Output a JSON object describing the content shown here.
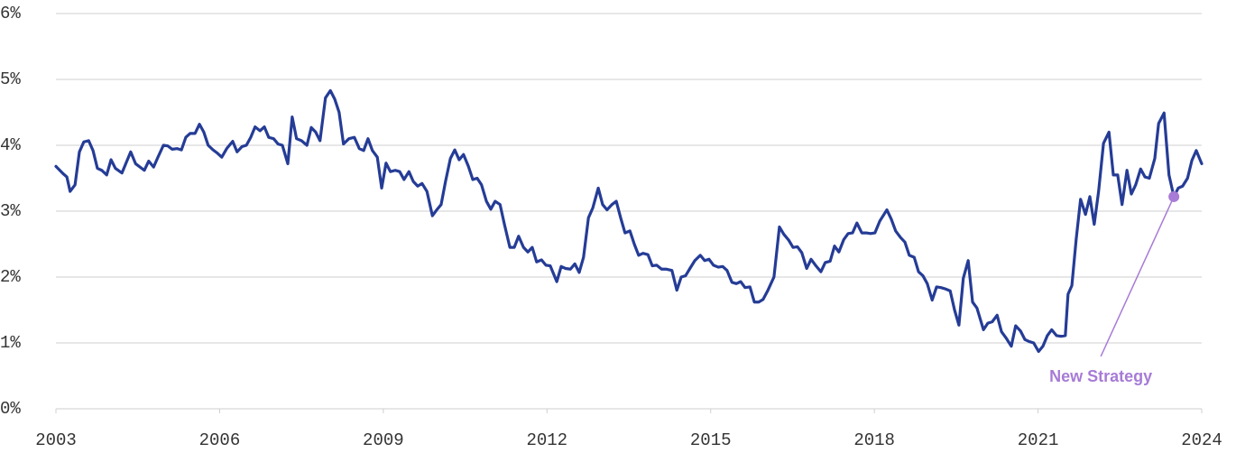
{
  "chart_data": {
    "type": "line",
    "color": "#253c96",
    "grid": true,
    "xlim": [
      2003,
      2024
    ],
    "xticks": [
      2003,
      2006,
      2009,
      2012,
      2015,
      2018,
      2021,
      2024
    ],
    "ylim": [
      0,
      6
    ],
    "yticks": [
      {
        "value": 0,
        "label": "0%"
      },
      {
        "value": 1,
        "label": "1%"
      },
      {
        "value": 2,
        "label": "2%"
      },
      {
        "value": 3,
        "label": "3%"
      },
      {
        "value": 4,
        "label": "4%"
      },
      {
        "value": 5,
        "label": "5%"
      },
      {
        "value": 6,
        "label": "6%"
      }
    ],
    "x": [
      2003.0,
      2003.13,
      2003.2,
      2003.26,
      2003.35,
      2003.43,
      2003.51,
      2003.6,
      2003.68,
      2003.76,
      2003.84,
      2003.93,
      2004.01,
      2004.09,
      2004.21,
      2004.37,
      2004.46,
      2004.62,
      2004.7,
      2004.79,
      2004.87,
      2004.97,
      2005.05,
      2005.13,
      2005.22,
      2005.3,
      2005.38,
      2005.46,
      2005.55,
      2005.63,
      2005.71,
      2005.79,
      2005.88,
      2005.96,
      2006.04,
      2006.13,
      2006.24,
      2006.32,
      2006.41,
      2006.49,
      2006.57,
      2006.65,
      2006.74,
      2006.82,
      2006.9,
      2006.99,
      2007.07,
      2007.15,
      2007.25,
      2007.33,
      2007.41,
      2007.5,
      2007.6,
      2007.68,
      2007.76,
      2007.84,
      2007.94,
      2008.03,
      2008.11,
      2008.19,
      2008.27,
      2008.37,
      2008.47,
      2008.56,
      2008.64,
      2008.72,
      2008.8,
      2008.89,
      2008.97,
      2009.05,
      2009.13,
      2009.22,
      2009.3,
      2009.38,
      2009.47,
      2009.55,
      2009.63,
      2009.71,
      2009.8,
      2009.9,
      2009.98,
      2010.06,
      2010.14,
      2010.23,
      2010.31,
      2010.39,
      2010.47,
      2010.56,
      2010.64,
      2010.72,
      2010.8,
      2010.89,
      2010.97,
      2011.05,
      2011.14,
      2011.22,
      2011.32,
      2011.4,
      2011.48,
      2011.57,
      2011.65,
      2011.73,
      2011.81,
      2011.9,
      2011.98,
      2012.06,
      2012.18,
      2012.26,
      2012.34,
      2012.43,
      2012.51,
      2012.59,
      2012.67,
      2012.76,
      2012.84,
      2012.94,
      2013.02,
      2013.1,
      2013.19,
      2013.27,
      2013.35,
      2013.43,
      2013.52,
      2013.6,
      2013.68,
      2013.76,
      2013.85,
      2013.93,
      2014.01,
      2014.1,
      2014.18,
      2014.29,
      2014.38,
      2014.46,
      2014.54,
      2014.62,
      2014.71,
      2014.81,
      2014.89,
      2014.97,
      2015.05,
      2015.14,
      2015.22,
      2015.3,
      2015.39,
      2015.47,
      2015.55,
      2015.63,
      2015.72,
      2015.8,
      2015.88,
      2015.96,
      2016.05,
      2016.16,
      2016.26,
      2016.34,
      2016.43,
      2016.51,
      2016.59,
      2016.67,
      2016.76,
      2016.84,
      2016.92,
      2017.02,
      2017.1,
      2017.19,
      2017.27,
      2017.35,
      2017.44,
      2017.52,
      2017.6,
      2017.68,
      2017.77,
      2017.85,
      2017.93,
      2018.01,
      2018.1,
      2018.23,
      2018.31,
      2018.39,
      2018.48,
      2018.56,
      2018.64,
      2018.73,
      2018.81,
      2018.89,
      2018.97,
      2019.06,
      2019.14,
      2019.22,
      2019.3,
      2019.39,
      2019.47,
      2019.55,
      2019.63,
      2019.72,
      2019.8,
      2019.88,
      2020.0,
      2020.08,
      2020.16,
      2020.25,
      2020.33,
      2020.41,
      2020.51,
      2020.59,
      2020.68,
      2020.76,
      2020.84,
      2020.92,
      2021.01,
      2021.09,
      2021.17,
      2021.25,
      2021.34,
      2021.42,
      2021.5,
      2021.55,
      2021.62,
      2021.7,
      2021.78,
      2021.87,
      2021.95,
      2022.03,
      2022.11,
      2022.2,
      2022.3,
      2022.38,
      2022.46,
      2022.54,
      2022.63,
      2022.71,
      2022.79,
      2022.88,
      2022.96,
      2023.04,
      2023.14,
      2023.21,
      2023.31,
      2023.4,
      2023.49,
      2023.57,
      2023.65,
      2023.74,
      2023.82,
      2023.9,
      2024.0
    ],
    "values": [
      3.68,
      3.57,
      3.52,
      3.3,
      3.4,
      3.9,
      4.05,
      4.07,
      3.92,
      3.65,
      3.62,
      3.55,
      3.78,
      3.65,
      3.58,
      3.9,
      3.72,
      3.62,
      3.76,
      3.67,
      3.82,
      4.0,
      3.99,
      3.94,
      3.95,
      3.93,
      4.12,
      4.18,
      4.18,
      4.32,
      4.2,
      4.0,
      3.93,
      3.88,
      3.82,
      3.95,
      4.06,
      3.9,
      3.98,
      4.0,
      4.12,
      4.28,
      4.22,
      4.28,
      4.12,
      4.1,
      4.02,
      4.0,
      3.72,
      4.43,
      4.1,
      4.07,
      4.0,
      4.27,
      4.2,
      4.07,
      4.72,
      4.83,
      4.7,
      4.5,
      4.02,
      4.1,
      4.12,
      3.95,
      3.92,
      4.1,
      3.92,
      3.82,
      3.35,
      3.73,
      3.6,
      3.62,
      3.6,
      3.48,
      3.6,
      3.45,
      3.38,
      3.42,
      3.3,
      2.93,
      3.02,
      3.1,
      3.45,
      3.8,
      3.93,
      3.78,
      3.86,
      3.68,
      3.48,
      3.5,
      3.4,
      3.15,
      3.03,
      3.15,
      3.1,
      2.8,
      2.45,
      2.45,
      2.62,
      2.45,
      2.38,
      2.45,
      2.23,
      2.26,
      2.18,
      2.17,
      1.93,
      2.16,
      2.13,
      2.12,
      2.2,
      2.07,
      2.3,
      2.9,
      3.05,
      3.35,
      3.1,
      3.02,
      3.1,
      3.15,
      2.9,
      2.67,
      2.7,
      2.5,
      2.33,
      2.36,
      2.34,
      2.17,
      2.18,
      2.12,
      2.12,
      2.1,
      1.8,
      2.0,
      2.02,
      2.13,
      2.25,
      2.33,
      2.25,
      2.27,
      2.18,
      2.15,
      2.16,
      2.1,
      1.92,
      1.9,
      1.93,
      1.84,
      1.85,
      1.62,
      1.62,
      1.66,
      1.8,
      2.0,
      2.76,
      2.65,
      2.56,
      2.45,
      2.46,
      2.37,
      2.13,
      2.27,
      2.18,
      2.08,
      2.22,
      2.24,
      2.47,
      2.38,
      2.57,
      2.66,
      2.67,
      2.82,
      2.67,
      2.67,
      2.66,
      2.67,
      2.85,
      3.02,
      2.88,
      2.7,
      2.6,
      2.53,
      2.33,
      2.3,
      2.08,
      2.02,
      1.9,
      1.65,
      1.85,
      1.84,
      1.82,
      1.79,
      1.5,
      1.27,
      1.98,
      2.25,
      1.62,
      1.53,
      1.2,
      1.3,
      1.32,
      1.42,
      1.17,
      1.08,
      0.95,
      1.26,
      1.18,
      1.05,
      1.02,
      1.0,
      0.87,
      0.95,
      1.11,
      1.2,
      1.11,
      1.1,
      1.11,
      1.74,
      1.87,
      2.58,
      3.18,
      2.95,
      3.22,
      2.8,
      3.3,
      4.03,
      4.2,
      3.55,
      3.55,
      3.1,
      3.62,
      3.26,
      3.4,
      3.64,
      3.52,
      3.5,
      3.8,
      4.33,
      4.49,
      3.55,
      3.22,
      3.35,
      3.38,
      3.5,
      3.77,
      3.92,
      3.72
    ],
    "annotations": [
      {
        "text": "New Strategy",
        "x": 2023.49,
        "y": 3.22,
        "color": "#a77bd6"
      }
    ]
  }
}
